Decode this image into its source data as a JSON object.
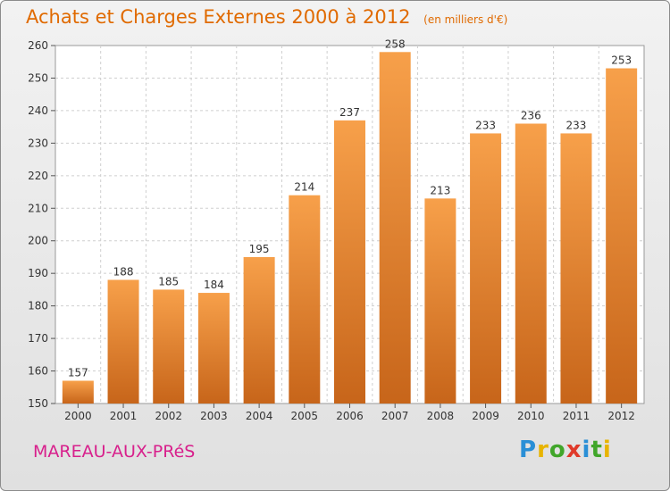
{
  "header": {
    "title": "Achats et Charges Externes 2000 à 2012",
    "unit": "(en milliers d'€)"
  },
  "footer": {
    "place": "MAREAU-AUX-PRéS",
    "brand": "Proxiti",
    "brand_letters": [
      {
        "ch": "P",
        "color": "#2a8fd6"
      },
      {
        "ch": "r",
        "color": "#e8b400"
      },
      {
        "ch": "o",
        "color": "#41a62a"
      },
      {
        "ch": "x",
        "color": "#e03a2a"
      },
      {
        "ch": "i",
        "color": "#2a8fd6"
      },
      {
        "ch": "t",
        "color": "#41a62a"
      },
      {
        "ch": "i",
        "color": "#e8b400"
      }
    ]
  },
  "colors": {
    "title": "#e06a00",
    "place": "#d8208c",
    "bar_top": "#f7a04a",
    "bar_bottom": "#c7651a"
  },
  "chart_data": {
    "type": "bar",
    "categories": [
      "2000",
      "2001",
      "2002",
      "2003",
      "2004",
      "2005",
      "2006",
      "2007",
      "2008",
      "2009",
      "2010",
      "2011",
      "2012"
    ],
    "values": [
      157,
      188,
      185,
      184,
      195,
      214,
      237,
      258,
      213,
      233,
      236,
      233,
      253
    ],
    "ylim": [
      150,
      260
    ],
    "yticks": [
      150,
      160,
      170,
      180,
      190,
      200,
      210,
      220,
      230,
      240,
      250,
      260
    ],
    "grid": true,
    "legend": "none"
  }
}
